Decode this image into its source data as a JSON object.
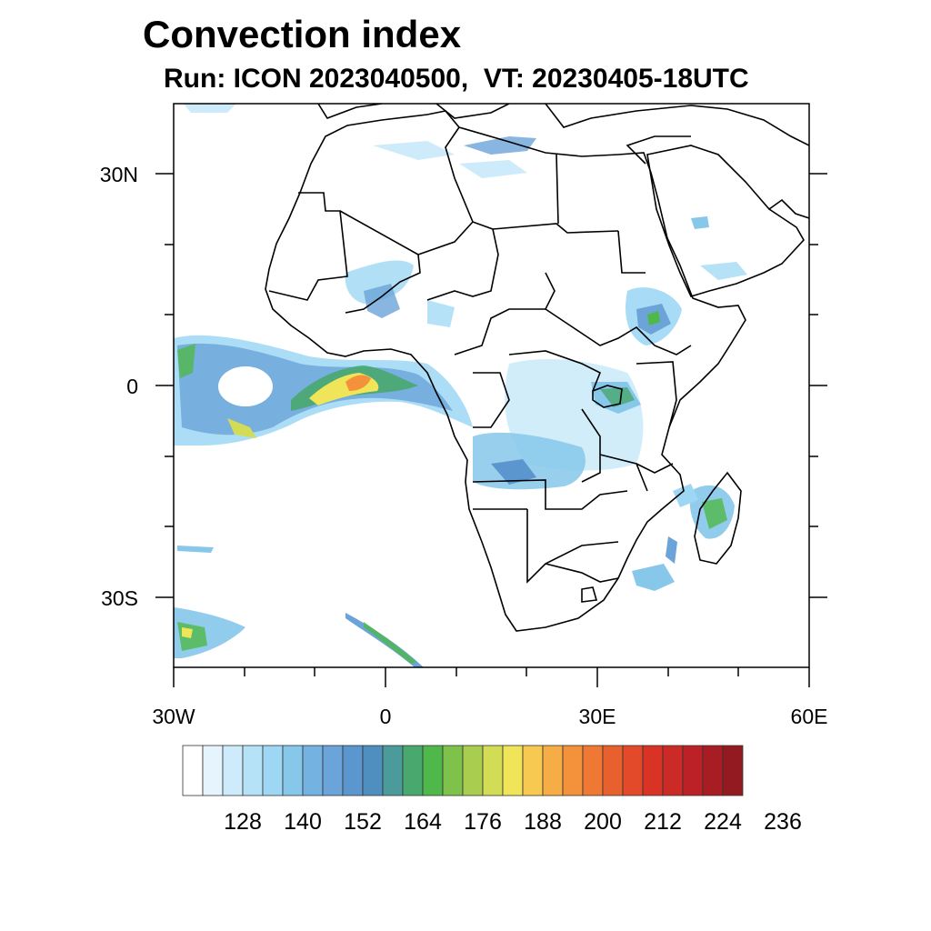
{
  "title": "Convection index",
  "subtitle": "Run: ICON 2023040500,  VT: 20230405-18UTC",
  "lat_labels": [
    "30N",
    "0",
    "30S"
  ],
  "lon_labels": [
    "30W",
    "0",
    "30E",
    "60E"
  ],
  "colorbar": {
    "tick_labels": [
      "128",
      "140",
      "152",
      "164",
      "176",
      "188",
      "200",
      "212",
      "224",
      "236"
    ],
    "colors": [
      "#ffffff",
      "#e6f5fd",
      "#cdebfa",
      "#b5e2f7",
      "#9ed7f4",
      "#86c7ea",
      "#74b3e1",
      "#6aa4d8",
      "#5c96cf",
      "#4f8fbf",
      "#4a9b9a",
      "#48a86e",
      "#4fb84a",
      "#7ec24c",
      "#a8cd4f",
      "#d2dd55",
      "#f0e458",
      "#f8c950",
      "#f7ad46",
      "#f4923c",
      "#ef7834",
      "#e8602d",
      "#e24a29",
      "#d93326",
      "#cc2a27",
      "#bb2126",
      "#a81c24",
      "#931a20"
    ]
  },
  "map": {
    "projection": "cylindrical equidistant",
    "lon_range": [
      -30,
      60
    ],
    "lat_range": [
      -40,
      40
    ]
  }
}
